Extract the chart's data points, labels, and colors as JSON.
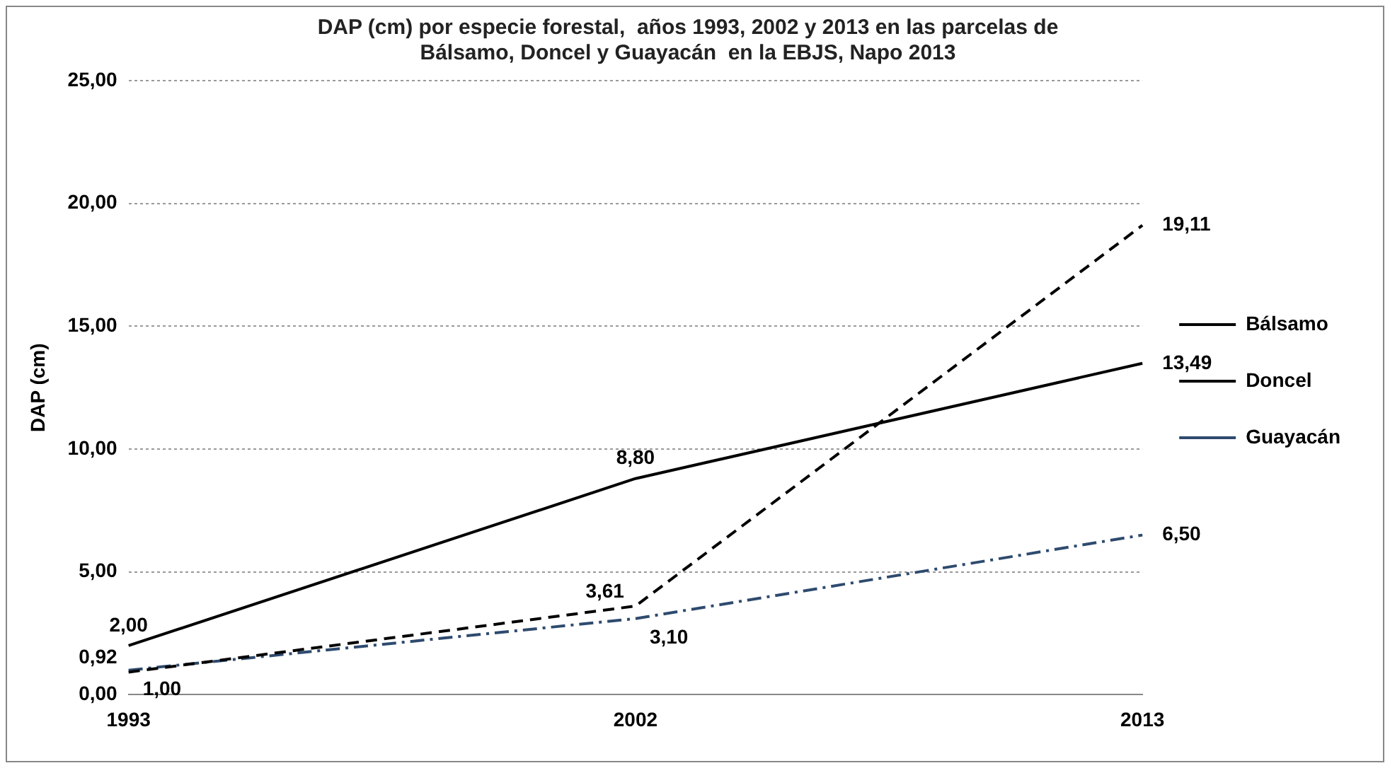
{
  "chart_data": {
    "type": "line",
    "title": "DAP (cm) por especie forestal,  años 1993, 2002 y 2013 en las parcelas de\nBálsamo, Doncel y Guayacán  en la EBJS, Napo 2013",
    "ylabel": "DAP (cm)",
    "categories": [
      "1993",
      "2002",
      "2013"
    ],
    "series": [
      {
        "name": "Bálsamo",
        "color": "#000000",
        "line_style": "solid",
        "values": [
          2.0,
          8.8,
          13.49
        ],
        "value_labels": [
          "2,00",
          "8,80",
          "13,49"
        ]
      },
      {
        "name": "Doncel",
        "color": "#000000",
        "line_style": "dashed",
        "values": [
          0.92,
          3.61,
          19.11
        ],
        "value_labels": [
          "0,92",
          "3,61",
          "19,11"
        ]
      },
      {
        "name": "Guayacán",
        "color": "#2e4a6e",
        "line_style": "dashdot",
        "values": [
          1.0,
          3.1,
          6.5
        ],
        "value_labels": [
          "1,00",
          "3,10",
          "6,50"
        ]
      }
    ],
    "ylim": [
      0,
      25
    ],
    "yticks": [
      {
        "value": 0,
        "label": "0,00"
      },
      {
        "value": 5,
        "label": "5,00"
      },
      {
        "value": 10,
        "label": "10,00"
      },
      {
        "value": 15,
        "label": "15,00"
      },
      {
        "value": 20,
        "label": "20,00"
      },
      {
        "value": 25,
        "label": "25,00"
      }
    ],
    "grid": "y",
    "legend": "right",
    "marker": "none"
  }
}
